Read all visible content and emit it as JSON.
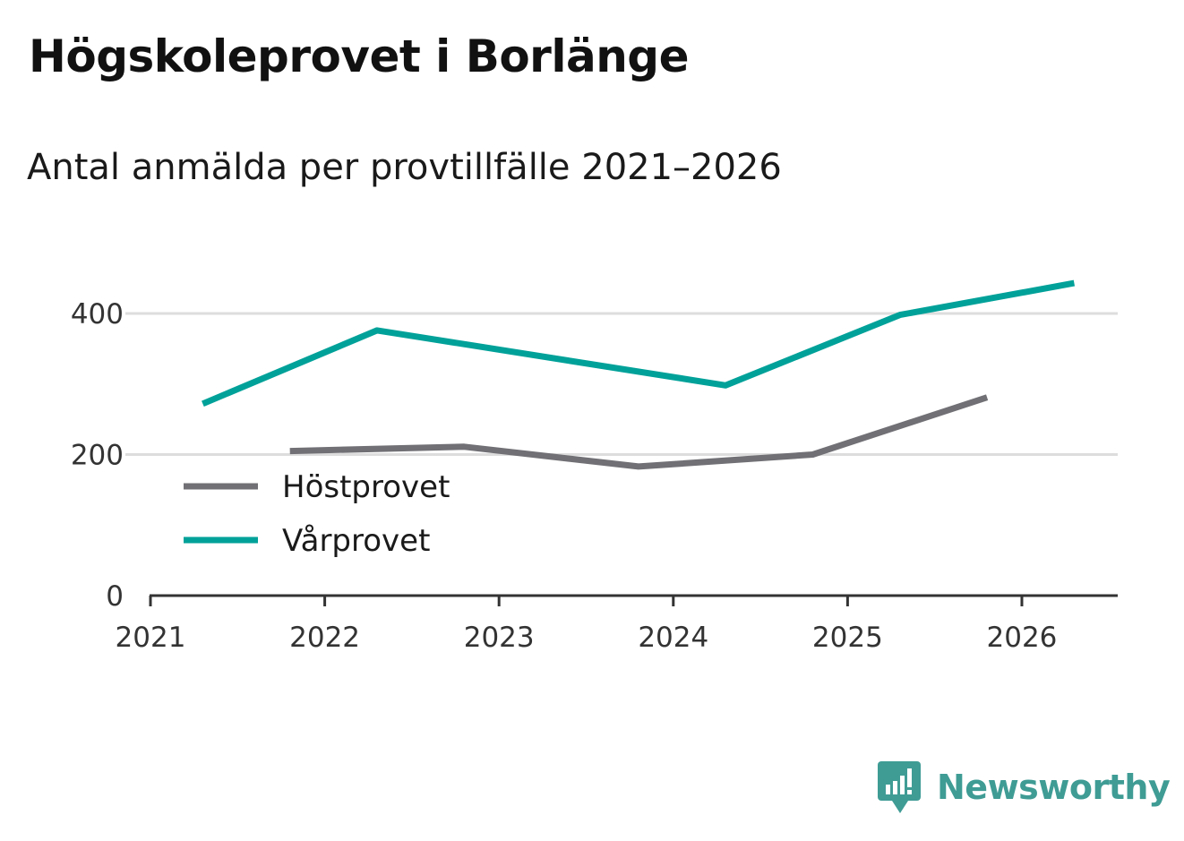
{
  "header": {
    "title": "Högskoleprovet i Borlänge",
    "subtitle": "Antal anmälda per provtillfälle 2021–2026"
  },
  "colors": {
    "hostprovet": "#717075",
    "varprovet": "#00a199",
    "grid": "#dddddd",
    "axis": "#333333",
    "brand": "#3f9c95"
  },
  "chart_data": {
    "type": "line",
    "title": "Högskoleprovet i Borlänge",
    "subtitle": "Antal anmälda per provtillfälle 2021–2026",
    "xlabel": "",
    "ylabel": "",
    "x_ticks": [
      "2021",
      "2022",
      "2023",
      "2024",
      "2025",
      "2026"
    ],
    "y_ticks": [
      0,
      200,
      400
    ],
    "xlim": [
      2021,
      2026.55
    ],
    "ylim": [
      0,
      400
    ],
    "grid": true,
    "legend": "bottom-left",
    "series": [
      {
        "name": "Höstprovet",
        "color": "#717075",
        "points": [
          {
            "x": 2021.8,
            "y": 205
          },
          {
            "x": 2022.8,
            "y": 211
          },
          {
            "x": 2023.8,
            "y": 183
          },
          {
            "x": 2024.8,
            "y": 200
          },
          {
            "x": 2025.8,
            "y": 281
          }
        ]
      },
      {
        "name": "Vårprovet",
        "color": "#00a199",
        "points": [
          {
            "x": 2021.3,
            "y": 272
          },
          {
            "x": 2022.3,
            "y": 376
          },
          {
            "x": 2024.3,
            "y": 298
          },
          {
            "x": 2025.3,
            "y": 398
          },
          {
            "x": 2026.3,
            "y": 443
          }
        ]
      }
    ]
  },
  "brand": {
    "name": "Newsworthy",
    "icon": "newsworthy-logo-icon"
  }
}
